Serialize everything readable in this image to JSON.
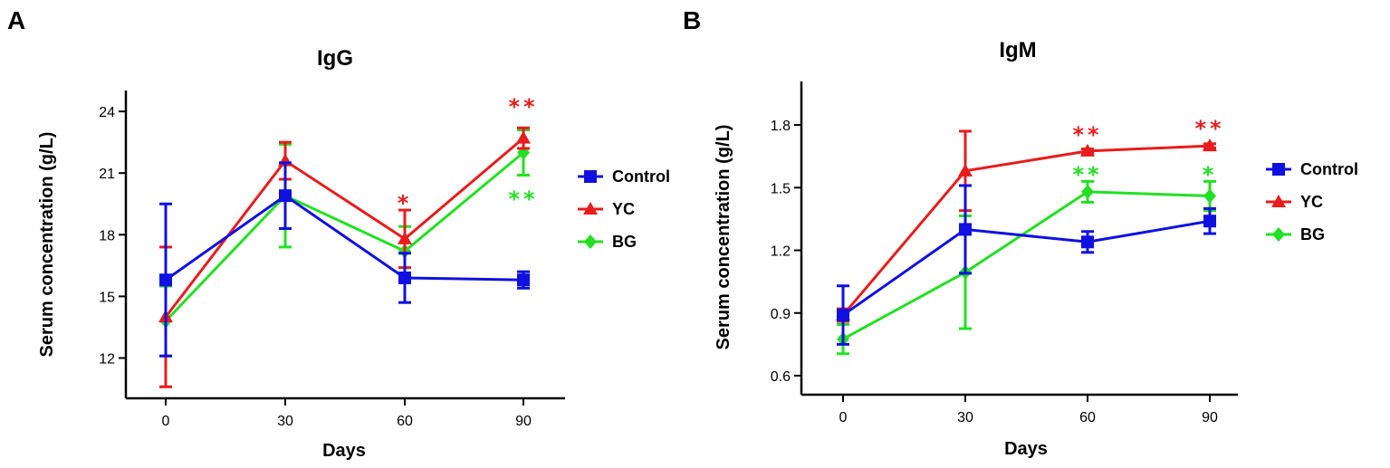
{
  "figure": {
    "width": 1535,
    "height": 517
  },
  "chart_data": [
    {
      "panel": "A",
      "type": "line",
      "title": "IgG",
      "xlabel": "Days",
      "ylabel": "Serum concentration (g/L)",
      "x": [
        0,
        30,
        60,
        90
      ],
      "xticks": [
        "0",
        "30",
        "60",
        "90"
      ],
      "yticks": [
        "12",
        "15",
        "18",
        "21",
        "24"
      ],
      "ylim": [
        10,
        25
      ],
      "series": [
        {
          "name": "Control",
          "color": "#1010e0",
          "marker": "square",
          "values": [
            15.8,
            19.9,
            15.9,
            15.8
          ],
          "err": [
            3.7,
            1.6,
            1.2,
            0.4
          ]
        },
        {
          "name": "YC",
          "color": "#e81c1c",
          "marker": "triangle",
          "values": [
            14.0,
            21.6,
            17.8,
            22.7
          ],
          "err": [
            3.4,
            0.9,
            1.4,
            0.5
          ]
        },
        {
          "name": "BG",
          "color": "#22e022",
          "marker": "diamond",
          "values": [
            13.8,
            19.9,
            17.2,
            22.0
          ],
          "err": [
            1.7,
            2.5,
            1.2,
            1.1
          ]
        }
      ],
      "annotations": [
        {
          "x": 60,
          "text": "*",
          "color": "#e81c1c",
          "y": 19.7
        },
        {
          "x": 90,
          "text": "**",
          "color": "#e81c1c",
          "y": 24.4
        },
        {
          "x": 90,
          "text": "**",
          "color": "#22e022",
          "y": 19.9
        }
      ],
      "legend": [
        "Control",
        "YC",
        "BG"
      ]
    },
    {
      "panel": "B",
      "type": "line",
      "title": "IgM",
      "xlabel": "Days",
      "ylabel": "Serum concentration (g/L)",
      "x": [
        0,
        30,
        60,
        90
      ],
      "xticks": [
        "0",
        "30",
        "60",
        "90"
      ],
      "yticks": [
        "0.6",
        "0.9",
        "1.2",
        "1.5",
        "1.8"
      ],
      "ylim": [
        0.5,
        1.98
      ],
      "series": [
        {
          "name": "Control",
          "color": "#1010e0",
          "marker": "square",
          "values": [
            0.89,
            1.3,
            1.24,
            1.34
          ],
          "err": [
            0.14,
            0.21,
            0.05,
            0.06
          ]
        },
        {
          "name": "YC",
          "color": "#e81c1c",
          "marker": "triangle",
          "values": [
            0.89,
            1.58,
            1.675,
            1.7
          ],
          "err": [
            0.03,
            0.19,
            0.01,
            0.01
          ]
        },
        {
          "name": "BG",
          "color": "#22e022",
          "marker": "diamond",
          "values": [
            0.775,
            1.095,
            1.48,
            1.46
          ],
          "err": [
            0.07,
            0.27,
            0.05,
            0.07
          ]
        }
      ],
      "annotations": [
        {
          "x": 60,
          "text": "**",
          "color": "#e81c1c",
          "y": 1.77
        },
        {
          "x": 90,
          "text": "**",
          "color": "#e81c1c",
          "y": 1.8
        },
        {
          "x": 60,
          "text": "**",
          "color": "#22e022",
          "y": 1.58
        },
        {
          "x": 90,
          "text": "*",
          "color": "#22e022",
          "y": 1.58
        }
      ],
      "legend": [
        "Control",
        "YC",
        "BG"
      ]
    }
  ]
}
